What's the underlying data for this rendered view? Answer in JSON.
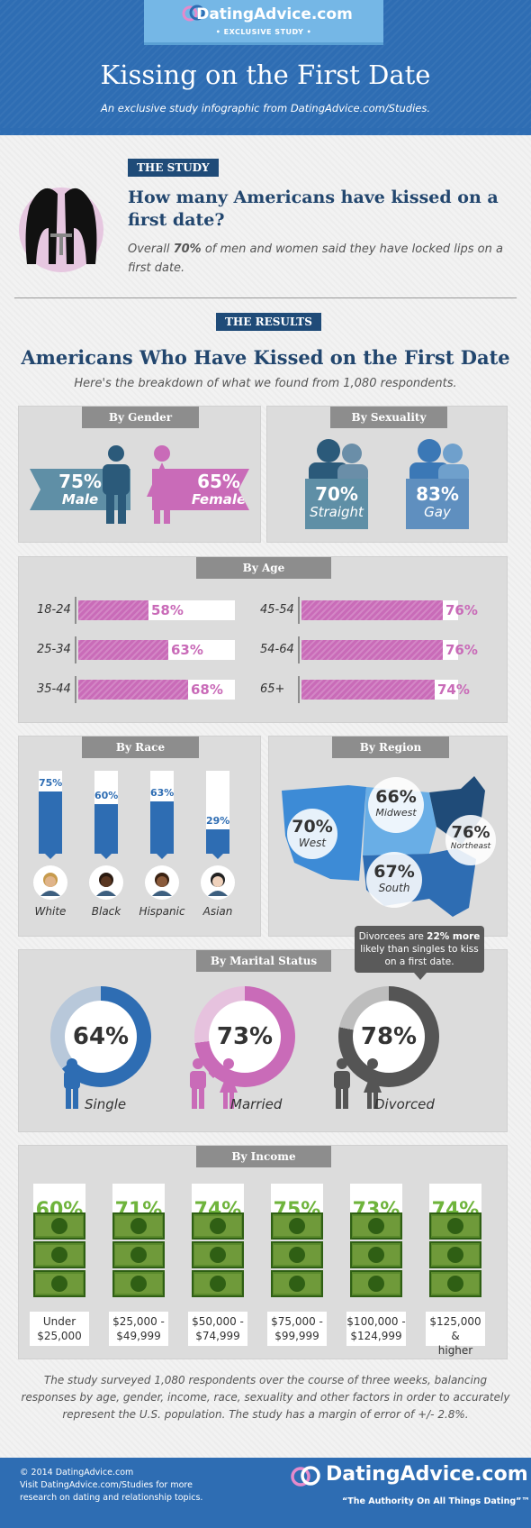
{
  "header": {
    "brand": "DatingAdvice.com",
    "badge": "• EXCLUSIVE STUDY •",
    "title": "Kissing on the First Date",
    "subtitle": "An exclusive study infographic from DatingAdvice.com/Studies."
  },
  "study": {
    "tag": "THE STUDY",
    "question": "How many Americans have kissed on a first date?",
    "text_a": "Overall ",
    "text_b": "70%",
    "text_c": " of men and women said they have locked lips on a first date."
  },
  "results": {
    "tag": "THE RESULTS",
    "heading": "Americans Who Have Kissed on the First Date",
    "sub": "Here's the breakdown of what we found from 1,080 respondents."
  },
  "gender": {
    "tab": "By Gender",
    "male_val": "75%",
    "male_lbl": "Male",
    "female_val": "65%",
    "female_lbl": "Female"
  },
  "sexuality": {
    "tab": "By Sexuality",
    "straight_val": "70%",
    "straight_lbl": "Straight",
    "gay_val": "83%",
    "gay_lbl": "Gay"
  },
  "age": {
    "tab": "By Age",
    "rows": [
      {
        "label": "18-24",
        "value": 58
      },
      {
        "label": "25-34",
        "value": 63
      },
      {
        "label": "35-44",
        "value": 68
      },
      {
        "label": "45-54",
        "value": 76
      },
      {
        "label": "54-64",
        "value": 76
      },
      {
        "label": "65+",
        "value": 74
      }
    ]
  },
  "race": {
    "tab": "By Race",
    "items": [
      {
        "label": "White",
        "value": 75
      },
      {
        "label": "Black",
        "value": 60
      },
      {
        "label": "Hispanic",
        "value": 63
      },
      {
        "label": "Asian",
        "value": 29
      }
    ]
  },
  "region": {
    "tab": "By Region",
    "west_v": "70%",
    "west_l": "West",
    "mid_v": "66%",
    "mid_l": "Midwest",
    "ne_v": "76%",
    "ne_l": "Northeast",
    "south_v": "67%",
    "south_l": "South"
  },
  "marital": {
    "tab": "By Marital Status",
    "note_a": "Divorcees are ",
    "note_b": "22% more",
    "note_c": " likely than singles to kiss on a first date.",
    "items": [
      {
        "label": "Single",
        "value": 64,
        "text": "64%"
      },
      {
        "label": "Married",
        "value": 73,
        "text": "73%"
      },
      {
        "label": "Divorced",
        "value": 78,
        "text": "78%"
      }
    ]
  },
  "income": {
    "tab": "By Income",
    "items": [
      {
        "value": "60%",
        "l1": "Under",
        "l2": "$25,000"
      },
      {
        "value": "71%",
        "l1": "$25,000 -",
        "l2": "$49,999"
      },
      {
        "value": "74%",
        "l1": "$50,000 -",
        "l2": "$74,999"
      },
      {
        "value": "75%",
        "l1": "$75,000 -",
        "l2": "$99,999"
      },
      {
        "value": "73%",
        "l1": "$100,000 -",
        "l2": "$124,999"
      },
      {
        "value": "74%",
        "l1": "$125,000 &",
        "l2": "higher"
      }
    ]
  },
  "method": "The study surveyed 1,080 respondents over the course of three weeks, balancing responses by age, gender, income, race, sexuality and other factors in order to accurately represent the U.S. population. The study has a margin of error of +/- 2.8%.",
  "footer": {
    "copy": "© 2014 DatingAdvice.com",
    "visit1": "Visit DatingAdvice.com/Studies for more",
    "visit2": "research on dating and relationship topics.",
    "brand": "DatingAdvice.com",
    "tagline": "“The Authority On All Things Dating”™"
  },
  "colors": {
    "blue": "#2e6db3",
    "pink": "#c96bb8",
    "green": "#6fb43c",
    "navy": "#1f4b78"
  }
}
